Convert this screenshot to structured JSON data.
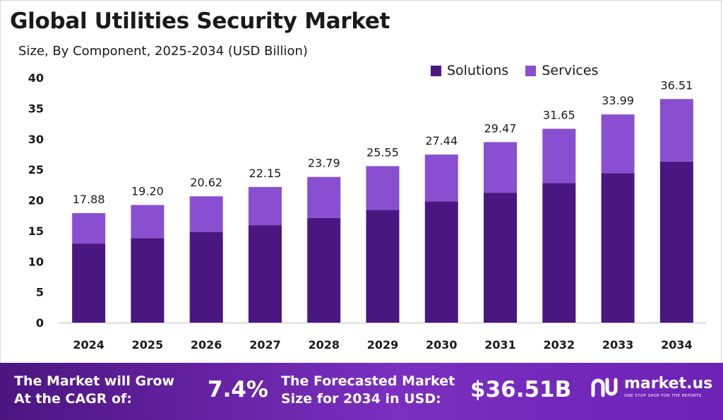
{
  "title": "Global Utilities Security Market",
  "subtitle": "Size, By Component, 2025-2034 (USD Billion)",
  "colors": {
    "solutions": "#4a1680",
    "services": "#8a4fd0",
    "footer": "#6a23ad"
  },
  "chart_data": {
    "type": "bar",
    "stacked": true,
    "categories": [
      "2024",
      "2025",
      "2026",
      "2027",
      "2028",
      "2029",
      "2030",
      "2031",
      "2032",
      "2033",
      "2034"
    ],
    "series": [
      {
        "name": "Solutions",
        "values": [
          12.9,
          13.8,
          14.8,
          15.9,
          17.1,
          18.4,
          19.8,
          21.2,
          22.8,
          24.4,
          26.3
        ]
      },
      {
        "name": "Services",
        "values": [
          4.98,
          5.4,
          5.82,
          6.25,
          6.69,
          7.15,
          7.64,
          8.27,
          8.85,
          9.59,
          10.21
        ]
      }
    ],
    "totals": [
      "17.88",
      "19.20",
      "20.62",
      "22.15",
      "23.79",
      "25.55",
      "27.44",
      "29.47",
      "31.65",
      "33.99",
      "36.51"
    ],
    "yticks": [
      "0",
      "5",
      "10",
      "15",
      "20",
      "25",
      "30",
      "35",
      "40"
    ],
    "ylim": [
      0,
      40
    ],
    "grid": false,
    "legend_position": "top-right"
  },
  "footer": {
    "cagr_label": "The Market will Grow At the CAGR of:",
    "cagr_value": "7.4%",
    "forecast_label": "The Forecasted Market Size for 2034 in USD:",
    "forecast_value": "$36.51B",
    "brand_name": "market.us",
    "brand_tagline": "ONE STOP SHOP FOR THE REPORTS"
  }
}
